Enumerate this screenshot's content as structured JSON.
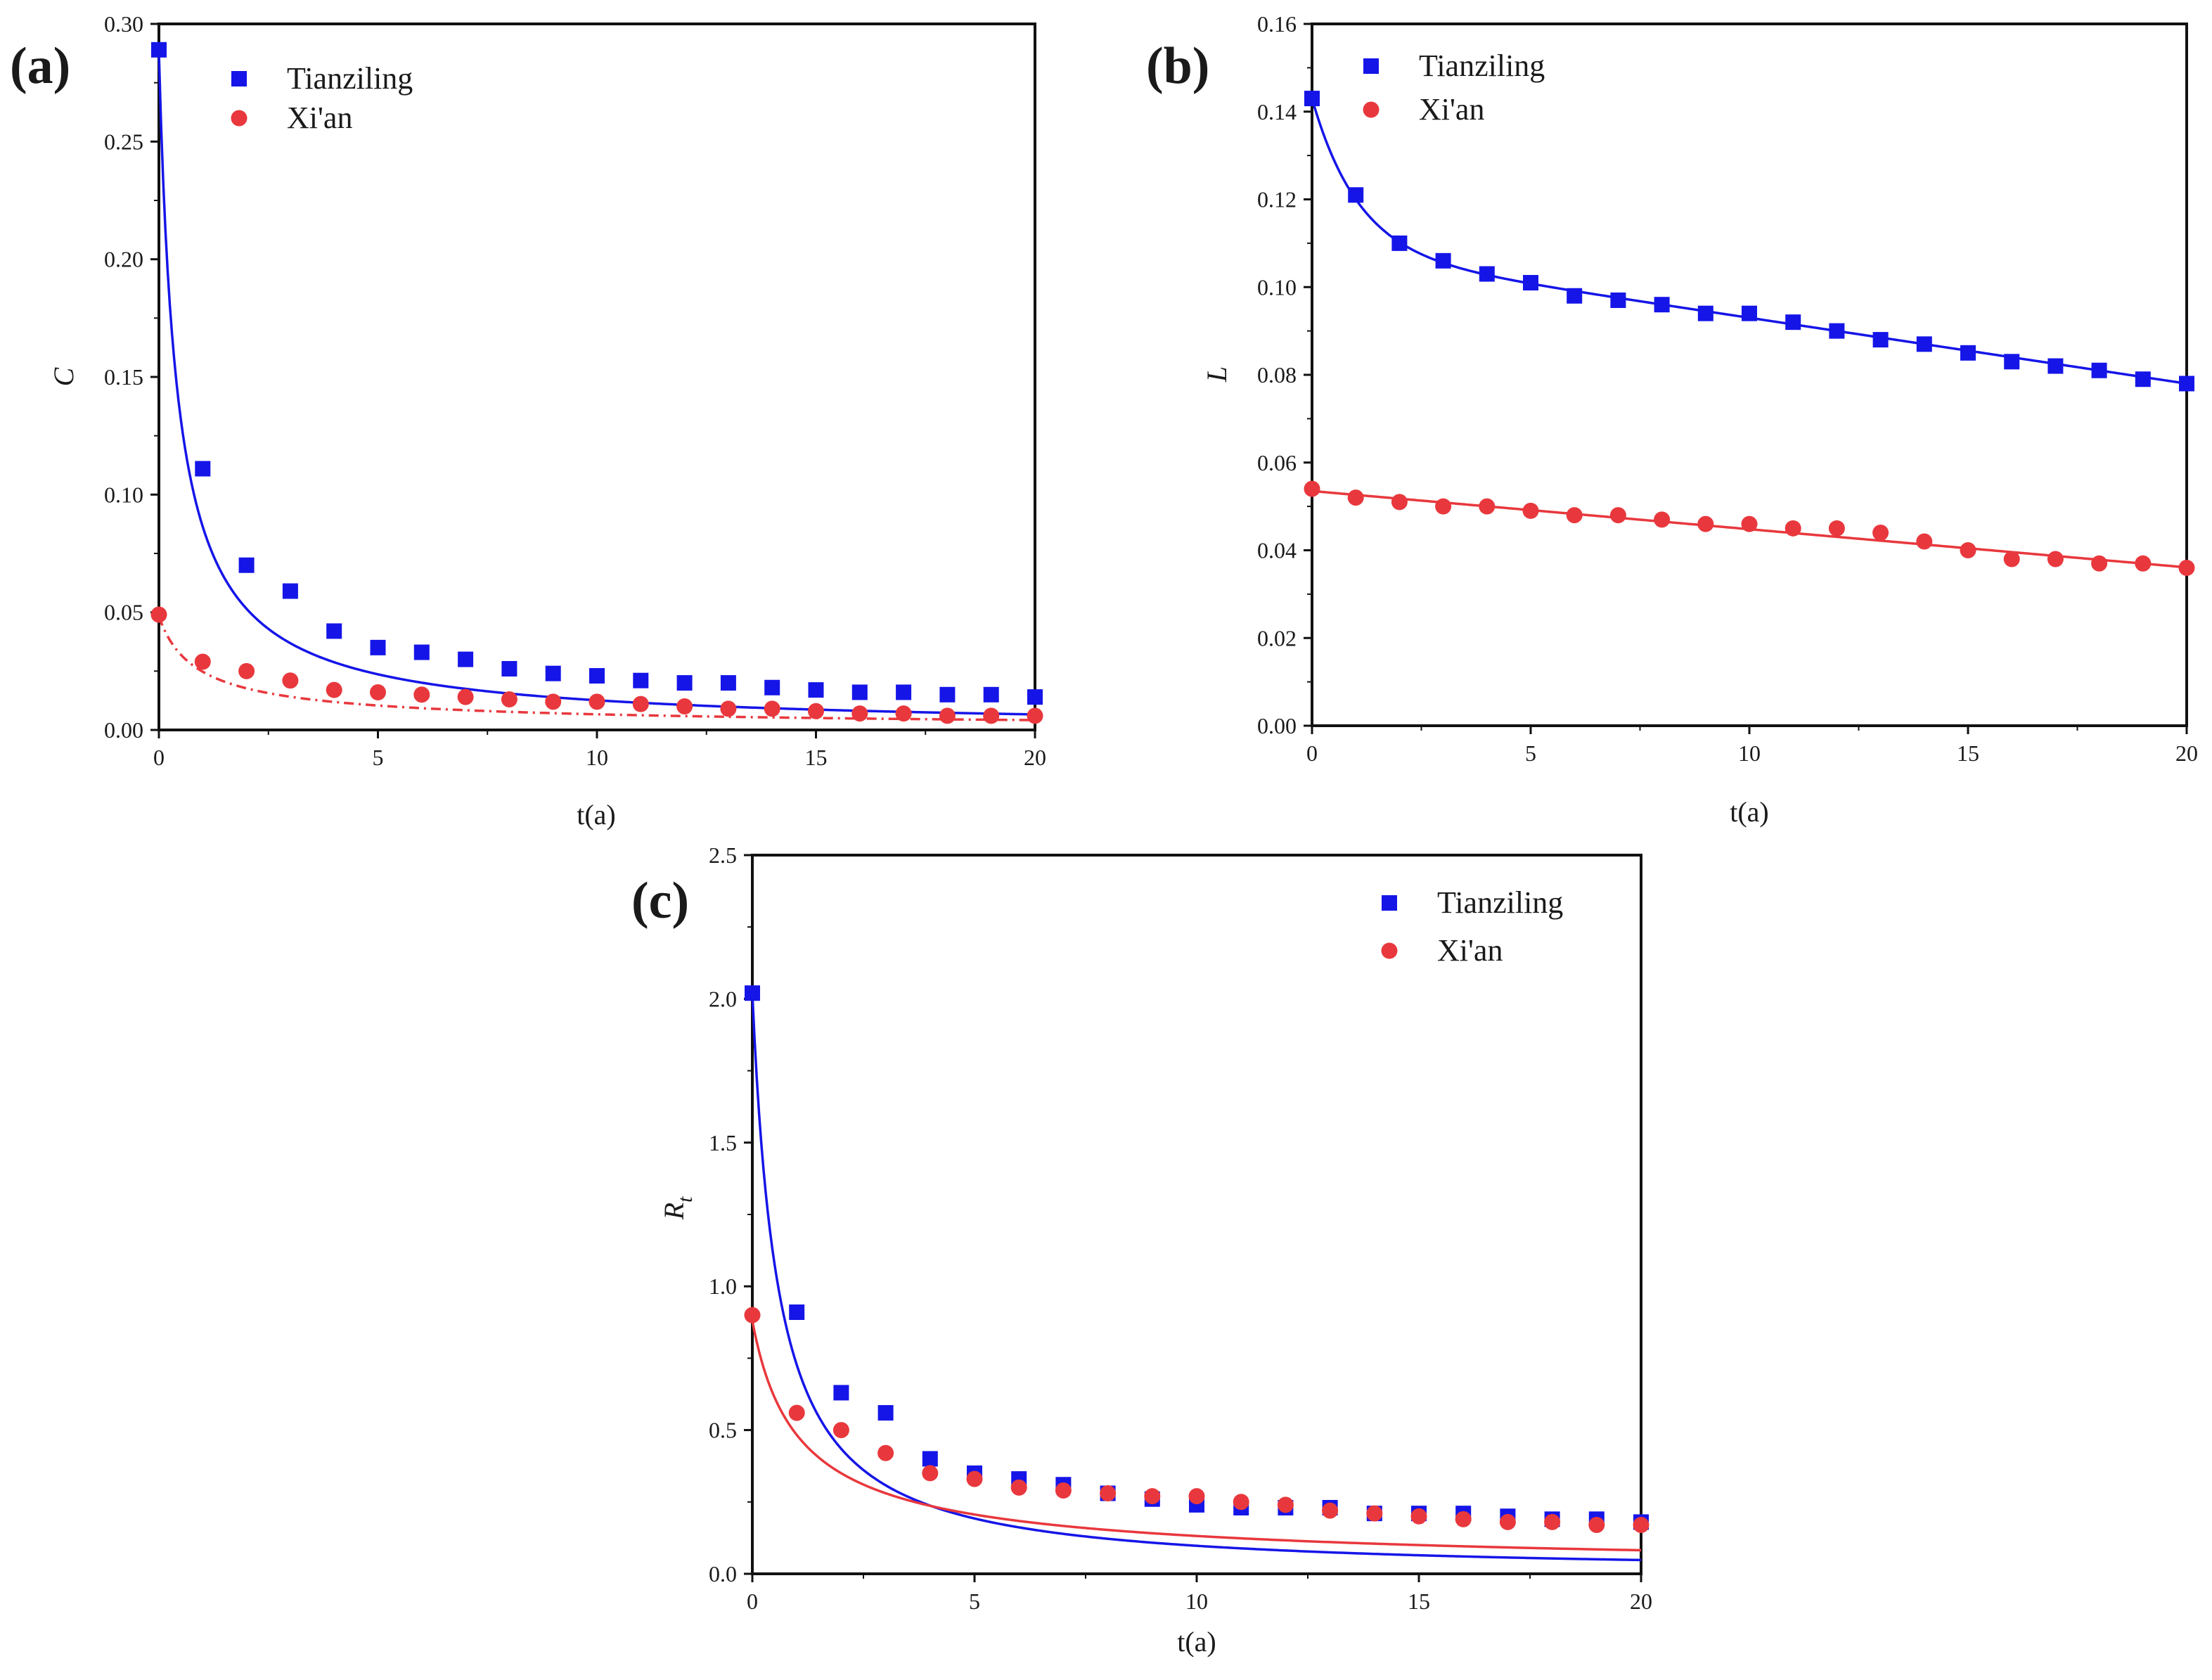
{
  "chart_data": [
    {
      "id": "a",
      "type": "scatter",
      "panel_label": "(a)",
      "title": "",
      "xlabel": "t(a)",
      "ylabel": "C",
      "ylabel_italic": true,
      "ylabel_sub": "",
      "xlim": [
        0,
        20
      ],
      "ylim": [
        0,
        0.3
      ],
      "xticks": [
        0,
        5,
        10,
        15,
        20
      ],
      "yticks": [
        0.0,
        0.05,
        0.1,
        0.15,
        0.2,
        0.25,
        0.3
      ],
      "ytick_labels": [
        "0.00",
        "0.05",
        "0.10",
        "0.15",
        "0.20",
        "0.25",
        "0.30"
      ],
      "xtick_labels": [
        "0",
        "5",
        "10",
        "15",
        "20"
      ],
      "legend_position": "top-left",
      "series": [
        {
          "name": "Tianziling",
          "marker": "square",
          "color": "#1515e8",
          "x": [
            0,
            1,
            2,
            3,
            4,
            5,
            6,
            7,
            8,
            9,
            10,
            11,
            12,
            13,
            14,
            15,
            16,
            17,
            18,
            19,
            20
          ],
          "values": [
            0.289,
            0.111,
            0.07,
            0.059,
            0.042,
            0.035,
            0.033,
            0.03,
            0.026,
            0.024,
            0.023,
            0.021,
            0.02,
            0.02,
            0.018,
            0.017,
            0.016,
            0.016,
            0.015,
            0.015,
            0.014
          ],
          "fit": {
            "a": 0.2876,
            "b": 2.5,
            "p": 0.96
          },
          "fit_dashed": false
        },
        {
          "name": "Xi'an",
          "marker": "circle",
          "color": "#e8383d",
          "x": [
            0,
            1,
            2,
            3,
            4,
            5,
            6,
            7,
            8,
            9,
            10,
            11,
            12,
            13,
            14,
            15,
            16,
            17,
            18,
            19,
            20
          ],
          "values": [
            0.049,
            0.029,
            0.025,
            0.021,
            0.017,
            0.016,
            0.015,
            0.014,
            0.013,
            0.012,
            0.012,
            0.011,
            0.01,
            0.009,
            0.009,
            0.008,
            0.007,
            0.007,
            0.006,
            0.006,
            0.006
          ],
          "fit": {
            "a": 0.0483,
            "b": 1.6,
            "p": 0.7
          },
          "fit_dashed": true
        }
      ]
    },
    {
      "id": "b",
      "type": "scatter",
      "panel_label": "(b)",
      "title": "",
      "xlabel": "t(a)",
      "ylabel": "L",
      "ylabel_italic": true,
      "ylabel_sub": "",
      "xlim": [
        0,
        20
      ],
      "ylim": [
        0,
        0.16
      ],
      "xticks": [
        0,
        5,
        10,
        15,
        20
      ],
      "yticks": [
        0.0,
        0.02,
        0.04,
        0.06,
        0.08,
        0.1,
        0.12,
        0.14,
        0.16
      ],
      "ytick_labels": [
        "0.00",
        "0.02",
        "0.04",
        "0.06",
        "0.08",
        "0.10",
        "0.12",
        "0.14",
        "0.16"
      ],
      "xtick_labels": [
        "0",
        "5",
        "10",
        "15",
        "20"
      ],
      "legend_position": "top-left",
      "series": [
        {
          "name": "Tianziling",
          "marker": "square",
          "color": "#1515e8",
          "x": [
            0,
            1,
            2,
            3,
            4,
            5,
            6,
            7,
            8,
            9,
            10,
            11,
            12,
            13,
            14,
            15,
            16,
            17,
            18,
            19,
            20
          ],
          "values": [
            0.143,
            0.121,
            0.11,
            0.106,
            0.103,
            0.101,
            0.098,
            0.097,
            0.096,
            0.094,
            0.094,
            0.092,
            0.09,
            0.088,
            0.087,
            0.085,
            0.083,
            0.082,
            0.081,
            0.079,
            0.078
          ],
          "fit": {
            "type": "exp_linear",
            "c": 0.108,
            "d": 0.0015,
            "e": 0.035,
            "k": 0.95
          },
          "fit_dashed": false
        },
        {
          "name": "Xi'an",
          "marker": "circle",
          "color": "#e8383d",
          "x": [
            0,
            1,
            2,
            3,
            4,
            5,
            6,
            7,
            8,
            9,
            10,
            11,
            12,
            13,
            14,
            15,
            16,
            17,
            18,
            19,
            20
          ],
          "values": [
            0.054,
            0.052,
            0.051,
            0.05,
            0.05,
            0.049,
            0.048,
            0.048,
            0.047,
            0.046,
            0.046,
            0.045,
            0.045,
            0.044,
            0.042,
            0.04,
            0.038,
            0.038,
            0.037,
            0.037,
            0.036
          ],
          "fit": {
            "type": "linear",
            "c": 0.0535,
            "d": 0.00087
          },
          "fit_dashed": false
        }
      ]
    },
    {
      "id": "c",
      "type": "scatter",
      "panel_label": "(c)",
      "title": "",
      "xlabel": "t(a)",
      "ylabel": "R",
      "ylabel_italic": true,
      "ylabel_sub": "t",
      "xlim": [
        0,
        20
      ],
      "ylim": [
        0,
        2.5
      ],
      "xticks": [
        0,
        5,
        10,
        15,
        20
      ],
      "yticks": [
        0.0,
        0.5,
        1.0,
        1.5,
        2.0,
        2.5
      ],
      "ytick_labels": [
        "0.0",
        "0.5",
        "1.0",
        "1.5",
        "2.0",
        "2.5"
      ],
      "xtick_labels": [
        "0",
        "5",
        "10",
        "15",
        "20"
      ],
      "legend_position": "top-right",
      "series": [
        {
          "name": "Tianziling",
          "marker": "square",
          "color": "#1515e8",
          "x": [
            0,
            1,
            2,
            3,
            4,
            5,
            6,
            7,
            8,
            9,
            10,
            11,
            12,
            13,
            14,
            15,
            16,
            17,
            18,
            19,
            20
          ],
          "values": [
            2.02,
            0.91,
            0.63,
            0.56,
            0.4,
            0.35,
            0.33,
            0.31,
            0.28,
            0.26,
            0.24,
            0.23,
            0.23,
            0.23,
            0.21,
            0.21,
            0.21,
            0.2,
            0.19,
            0.19,
            0.18
          ],
          "fit": {
            "a": 2.02,
            "b": 1.6,
            "p": 1.07
          },
          "fit_dashed": false
        },
        {
          "name": "Xi'an",
          "marker": "circle",
          "color": "#e8383d",
          "x": [
            0,
            1,
            2,
            3,
            4,
            5,
            6,
            7,
            8,
            9,
            10,
            11,
            12,
            13,
            14,
            15,
            16,
            17,
            18,
            19,
            20
          ],
          "values": [
            0.9,
            0.56,
            0.5,
            0.42,
            0.35,
            0.33,
            0.3,
            0.29,
            0.28,
            0.27,
            0.27,
            0.25,
            0.24,
            0.22,
            0.21,
            0.2,
            0.19,
            0.18,
            0.18,
            0.17,
            0.17
          ],
          "fit": {
            "a": 0.88,
            "b": 1.3,
            "p": 0.72
          },
          "fit_dashed": false
        }
      ]
    }
  ]
}
